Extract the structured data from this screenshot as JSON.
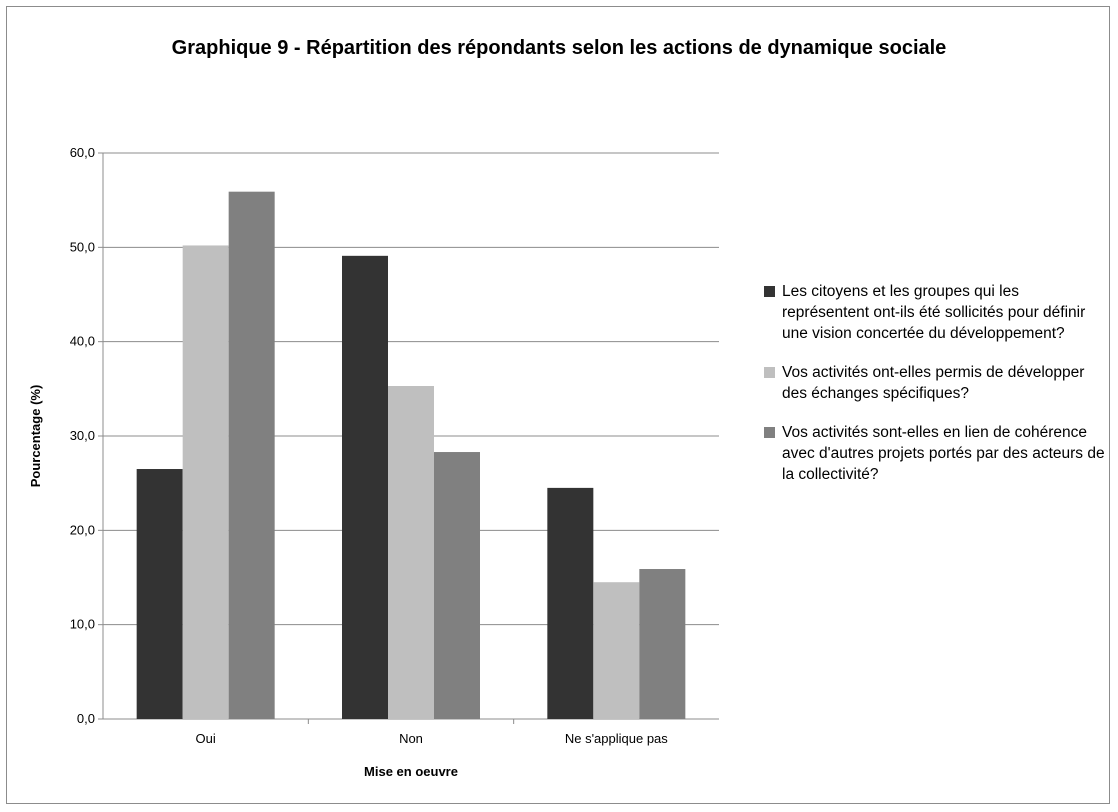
{
  "chart_data": {
    "type": "bar",
    "title": "Graphique 9 - Répartition des répondants selon les actions de dynamique sociale",
    "xlabel": "Mise en oeuvre",
    "ylabel": "Pourcentage (%)",
    "categories": [
      "Oui",
      "Non",
      "Ne s'applique pas"
    ],
    "ylim": [
      0,
      60
    ],
    "yticks": [
      "0,0",
      "10,0",
      "20,0",
      "30,0",
      "40,0",
      "50,0",
      "60,0"
    ],
    "grid": true,
    "legend_position": "right",
    "series": [
      {
        "name": "Les citoyens et les groupes qui les représentent ont-ils été sollicités pour définir une vision concertée du développement?",
        "color": "#333333",
        "values": [
          26.5,
          49.1,
          24.5
        ]
      },
      {
        "name": "Vos activités ont-elles permis de développer des échanges spécifiques?",
        "color": "#bfbfbf",
        "values": [
          50.2,
          35.3,
          14.5
        ]
      },
      {
        "name": "Vos activités sont-elles en lien de cohérence avec d'autres projets portés par des acteurs de la collectivité?",
        "color": "#808080",
        "values": [
          55.9,
          28.3,
          15.9
        ]
      }
    ]
  }
}
